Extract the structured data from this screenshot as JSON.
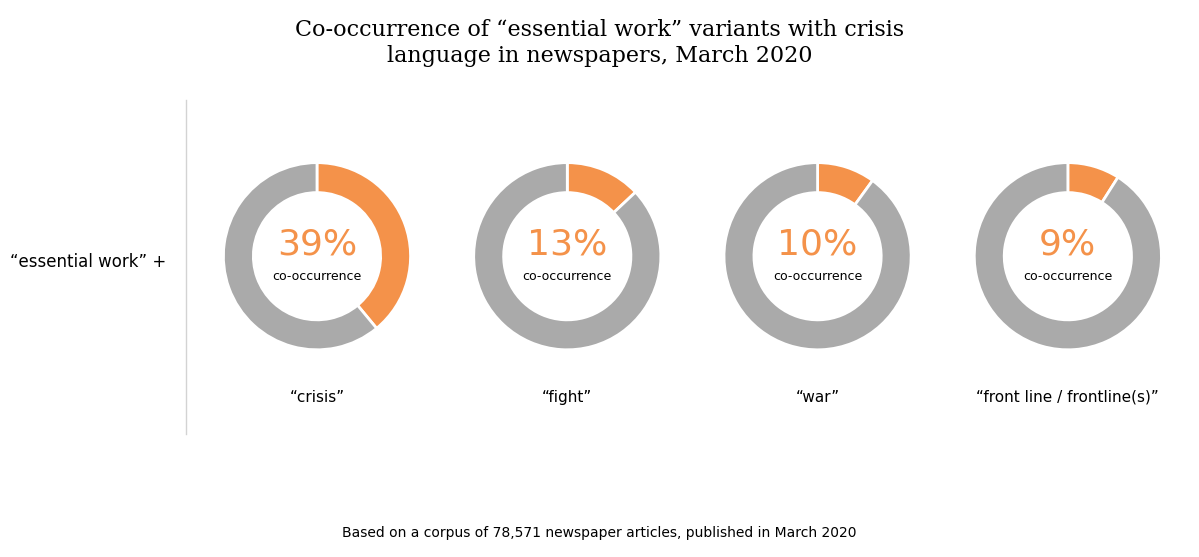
{
  "title": "Co-occurrence of “essential work” variants with crisis\nlanguage in newspapers, March 2020",
  "annotations": [
    "“essential work” +",
    "Based on a corpus of 78,571 newspaper articles, published in March 2020"
  ],
  "chart_data": [
    {
      "type": "pie",
      "title": "“crisis”",
      "values": [
        39,
        61
      ],
      "colors": [
        "#F4924A",
        "#AAAAAA"
      ],
      "annotations": [
        "39%",
        "co-occurrence"
      ]
    },
    {
      "type": "pie",
      "title": "“fight”",
      "values": [
        13,
        87
      ],
      "colors": [
        "#F4924A",
        "#AAAAAA"
      ],
      "annotations": [
        "13%",
        "co-occurrence"
      ]
    },
    {
      "type": "pie",
      "title": "“war”",
      "values": [
        10,
        90
      ],
      "colors": [
        "#F4924A",
        "#AAAAAA"
      ],
      "annotations": [
        "10%",
        "co-occurrence"
      ]
    },
    {
      "type": "pie",
      "title": "“front line / frontline(s)”",
      "values": [
        9,
        91
      ],
      "colors": [
        "#F4924A",
        "#AAAAAA"
      ],
      "annotations": [
        "9%",
        "co-occurrence"
      ]
    }
  ]
}
